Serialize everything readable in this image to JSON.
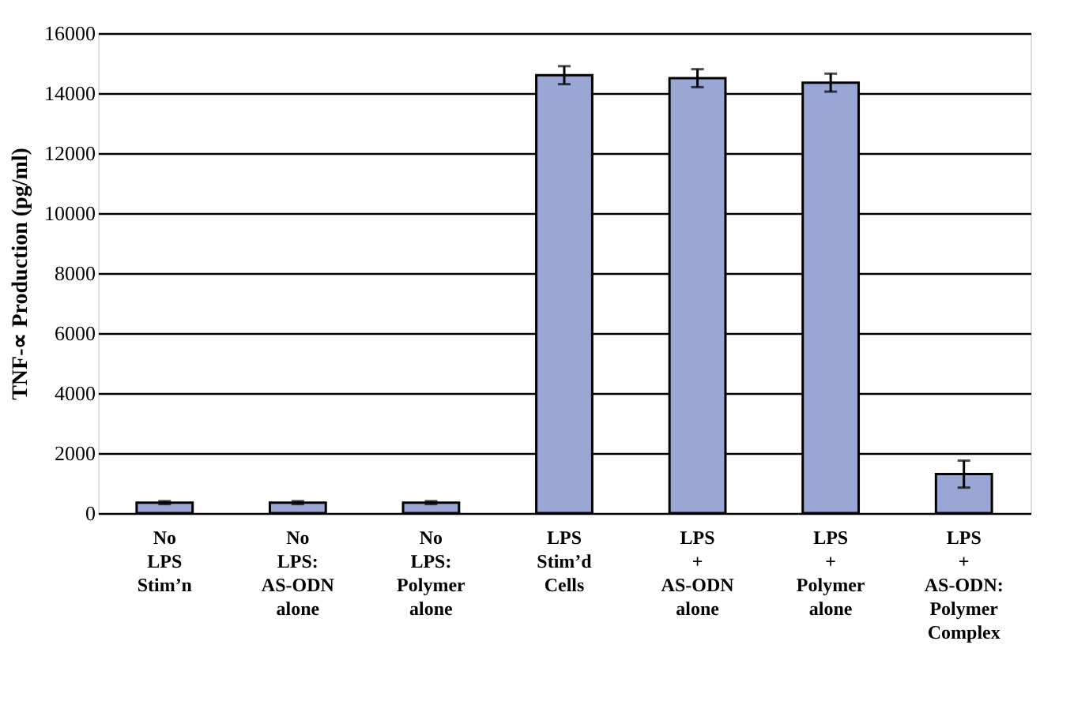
{
  "chart_data": {
    "type": "bar",
    "ylabel": "TNF-∝ Production (pg/ml)",
    "categories": [
      "No\nLPS\nStim’n",
      "No\nLPS:\nAS-ODN\nalone",
      "No\nLPS:\nPolymer\nalone",
      "LPS\nStim’d\nCells",
      "LPS\n+\nAS-ODN\nalone",
      "LPS\n+\nPolymer\nalone",
      "LPS\n+\nAS-ODN:\nPolymer\nComplex"
    ],
    "values": [
      350,
      350,
      350,
      14600,
      14500,
      14350,
      1300
    ],
    "errors": [
      50,
      50,
      50,
      300,
      300,
      300,
      450
    ],
    "color": "#9aa6d4",
    "ylim": [
      0,
      16000
    ],
    "yticks": [
      0,
      2000,
      4000,
      6000,
      8000,
      10000,
      12000,
      14000,
      16000
    ],
    "grid": "y"
  }
}
